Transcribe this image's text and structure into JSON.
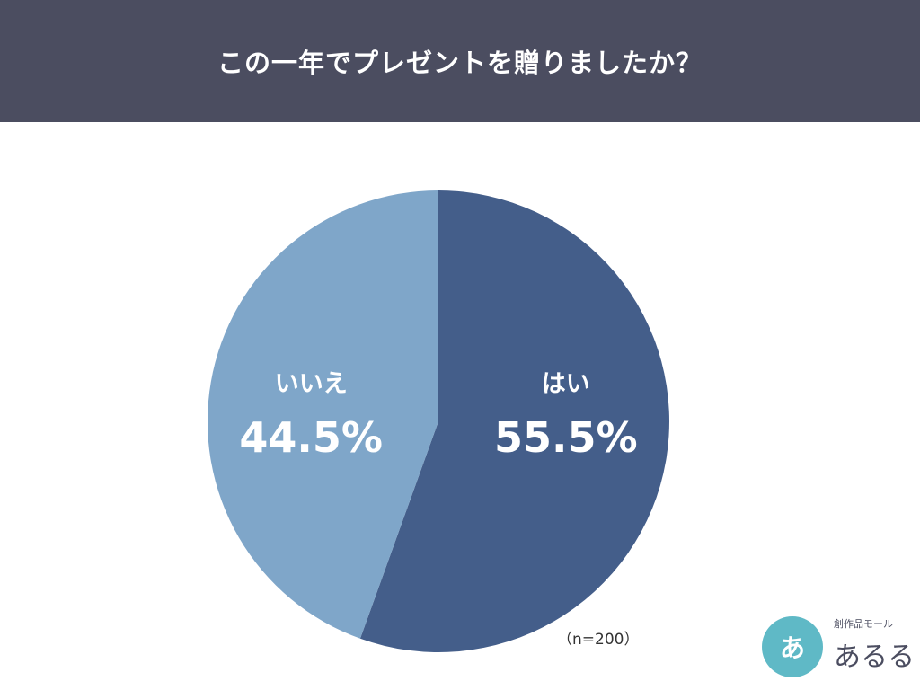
{
  "header": {
    "title": "この一年でプレゼントを贈りましたか？"
  },
  "chart_data": {
    "type": "pie",
    "title": "この一年でプレゼントを贈りましたか？",
    "categories": [
      "はい",
      "いいえ"
    ],
    "values": [
      55.5,
      44.5
    ],
    "value_labels": [
      "55.5%",
      "44.5%"
    ],
    "colors": [
      "#445e8a",
      "#7fa6c9"
    ],
    "start": "12 o'clock",
    "direction": "clockwise",
    "legend": "none"
  },
  "note": {
    "sample_size": "（n=200）"
  },
  "logo": {
    "circle_text": "あ",
    "small_text": "創作品モール",
    "main_text": "あるる"
  }
}
